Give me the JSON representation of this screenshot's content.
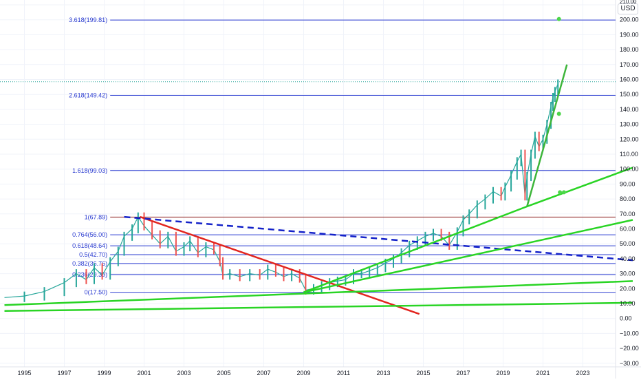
{
  "chart_data": {
    "type": "line",
    "currency_label": "USD",
    "x_range": [
      1994.0,
      2025.5
    ],
    "ylim": [
      -34,
      211
    ],
    "y_ticks": [
      "210.00",
      "200.00",
      "190.00",
      "180.00",
      "170.00",
      "160.00",
      "150.00",
      "140.00",
      "130.00",
      "120.00",
      "110.00",
      "100.00",
      "90.00",
      "80.00",
      "70.00",
      "60.00",
      "50.00",
      "40.00",
      "30.00",
      "20.00",
      "10.00",
      "0.00",
      "−10.00",
      "−20.00",
      "−30.00"
    ],
    "y_tick_values": [
      210,
      200,
      190,
      180,
      170,
      160,
      150,
      140,
      130,
      120,
      110,
      100,
      90,
      80,
      70,
      60,
      50,
      40,
      30,
      20,
      10,
      0,
      -10,
      -20,
      -30
    ],
    "x_ticks": [
      "1995",
      "1997",
      "1999",
      "2001",
      "2003",
      "2005",
      "2007",
      "2009",
      "2011",
      "2013",
      "2015",
      "2017",
      "2019",
      "2021",
      "2023"
    ],
    "x_tick_values": [
      1995,
      1997,
      1999,
      2001,
      2003,
      2005,
      2007,
      2009,
      2011,
      2013,
      2015,
      2017,
      2019,
      2021,
      2023
    ],
    "fib_levels": [
      {
        "label": "3.618(199.81)",
        "value": 199.81
      },
      {
        "label": "2.618(149.42)",
        "value": 149.42
      },
      {
        "label": "1.618(99.03)",
        "value": 99.03
      },
      {
        "label": "1(67.89)",
        "value": 67.89
      },
      {
        "label": "0.764(56.00)",
        "value": 56.0
      },
      {
        "label": "0.618(48.64)",
        "value": 48.64
      },
      {
        "label": "0.5(42.70)",
        "value": 42.7
      },
      {
        "label": "0.382(36.76)",
        "value": 36.76
      },
      {
        "label": "0.236(29.39)",
        "value": 29.39
      },
      {
        "label": "0(17.50)",
        "value": 17.5
      }
    ],
    "last_price_level": 158.5,
    "price_series": {
      "x": [
        1994.0,
        1995.0,
        1996.0,
        1997.0,
        1997.6,
        1998.1,
        1998.5,
        1998.9,
        1999.3,
        1999.7,
        2000.0,
        2000.4,
        2000.7,
        2001.0,
        2001.4,
        2001.8,
        2002.2,
        2002.6,
        2003.0,
        2003.3,
        2003.7,
        2004.1,
        2004.5,
        2004.8,
        2004.95,
        2005.3,
        2005.8,
        2006.3,
        2006.8,
        2007.2,
        2007.6,
        2008.0,
        2008.4,
        2008.8,
        2009.1,
        2009.5,
        2009.9,
        2010.3,
        2010.7,
        2011.1,
        2011.5,
        2011.9,
        2012.3,
        2012.7,
        2013.1,
        2013.5,
        2013.9,
        2014.3,
        2014.7,
        2015.1,
        2015.5,
        2015.9,
        2016.3,
        2016.7,
        2017.0,
        2017.3,
        2017.7,
        2018.1,
        2018.5,
        2018.9,
        2019.1,
        2019.4,
        2019.7,
        2019.9,
        2020.1,
        2020.2,
        2020.4,
        2020.6,
        2020.8,
        2021.0,
        2021.2,
        2021.4,
        2021.5,
        2021.6,
        2021.75
      ],
      "y": [
        14,
        15,
        18,
        24,
        30,
        26,
        34,
        29,
        38,
        45,
        55,
        60,
        68,
        62,
        56,
        50,
        55,
        45,
        48,
        52,
        44,
        48,
        46,
        38,
        29,
        30,
        28,
        30,
        29,
        33,
        31,
        28,
        30,
        27,
        19,
        20,
        22,
        24,
        25,
        26,
        30,
        30,
        32,
        34,
        37,
        40,
        44,
        49,
        52,
        55,
        57,
        55,
        49,
        58,
        66,
        70,
        76,
        80,
        85,
        82,
        88,
        96,
        105,
        110,
        82,
        95,
        110,
        122,
        115,
        120,
        130,
        142,
        148,
        152,
        157
      ]
    },
    "trend_lines": [
      {
        "name": "red-downtrend",
        "color": "#e2251f",
        "dashed": false,
        "points": [
          [
            2000.8,
            68.0
          ],
          [
            2014.8,
            3.0
          ]
        ]
      },
      {
        "name": "blue-dashed-resistance",
        "color": "#1422c9",
        "dashed": true,
        "points": [
          [
            2000.0,
            68.0
          ],
          [
            2025.5,
            39.0
          ]
        ]
      },
      {
        "name": "green-support-1",
        "color": "#29d424",
        "dashed": false,
        "points": [
          [
            1994.0,
            5.0
          ],
          [
            2025.5,
            10.5
          ]
        ]
      },
      {
        "name": "green-support-2",
        "color": "#29d424",
        "dashed": false,
        "points": [
          [
            1994.0,
            9.0
          ],
          [
            2025.5,
            25.0
          ]
        ]
      },
      {
        "name": "green-support-3",
        "color": "#29d424",
        "dashed": false,
        "points": [
          [
            2009.0,
            17.5
          ],
          [
            2025.5,
            66.0
          ]
        ]
      },
      {
        "name": "green-support-4",
        "color": "#29d424",
        "dashed": false,
        "points": [
          [
            2009.0,
            17.5
          ],
          [
            2020.2,
            75.0
          ],
          [
            2025.5,
            101.0
          ]
        ]
      },
      {
        "name": "green-steep",
        "color": "#3db53a",
        "dashed": false,
        "points": [
          [
            2020.2,
            75.0
          ],
          [
            2022.2,
            170.0
          ]
        ]
      }
    ],
    "markers": [
      {
        "x": 2021.8,
        "y": 200.5
      },
      {
        "x": 2021.8,
        "y": 137.0
      },
      {
        "x": 2021.85,
        "y": 84.5
      },
      {
        "x": 2022.05,
        "y": 84.5
      }
    ],
    "colors": {
      "fib_line": "#2a3bd0",
      "fib_text": "#2a3bd0",
      "price": "#26a69a",
      "price_down": "#ef5350",
      "grid": "#f0f3fa",
      "marker": "#4cd64a",
      "red_fib_level": "#8a1a1a"
    }
  }
}
